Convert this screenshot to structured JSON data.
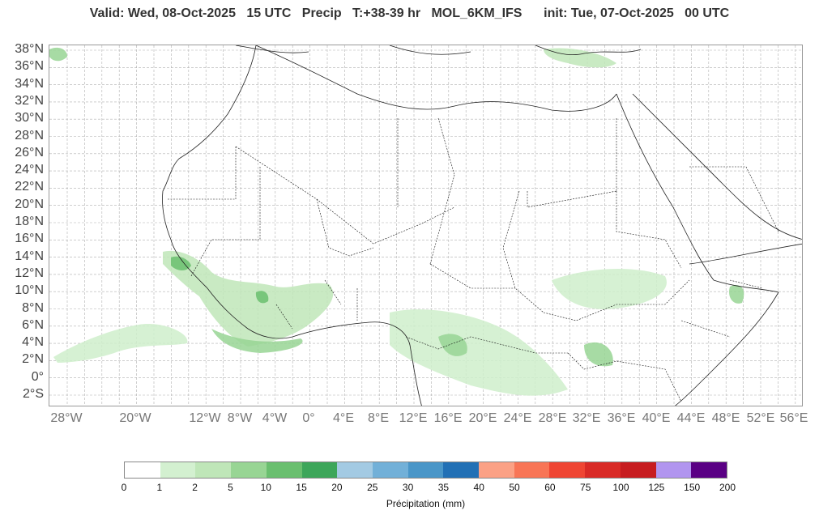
{
  "title": {
    "valid": "Valid: Wed, 08-Oct-2025",
    "hour": "15 UTC",
    "var": "Precip",
    "lead": "T:+38-39 hr",
    "model": "MOL_6KM_IFS",
    "init": "init: Tue, 07-Oct-2025",
    "init_hour": "00 UTC"
  },
  "map": {
    "lat_labels": [
      "38°N",
      "36°N",
      "34°N",
      "32°N",
      "30°N",
      "28°N",
      "26°N",
      "24°N",
      "22°N",
      "20°N",
      "18°N",
      "16°N",
      "14°N",
      "12°N",
      "10°N",
      "8°N",
      "6°N",
      "4°N",
      "2°N",
      "0°",
      "2°S"
    ],
    "lon_labels": [
      "28°W",
      "20°W",
      "12°W",
      "8°W",
      "4°W",
      "0°",
      "4°E",
      "8°E",
      "12°E",
      "16°E",
      "20°E",
      "24°E",
      "28°E",
      "32°E",
      "36°E",
      "40°E",
      "44°E",
      "48°E",
      "52°E",
      "56°E"
    ],
    "coastline_color": "#222222",
    "border_color": "#111111",
    "grid_color": "#b0b0b0"
  },
  "colorbar": {
    "label": "Précipitation (mm)",
    "ticks": [
      "0",
      "1",
      "2",
      "5",
      "10",
      "15",
      "20",
      "25",
      "30",
      "35",
      "40",
      "50",
      "60",
      "75",
      "100",
      "125",
      "150",
      "200"
    ],
    "colors": [
      "#ffffff",
      "#d3f0d0",
      "#bfe6b8",
      "#98d594",
      "#6abf6f",
      "#3da65a",
      "#a3cae3",
      "#72b0d8",
      "#4a96c8",
      "#2270b5",
      "#fba185",
      "#f87556",
      "#ef4533",
      "#d92a26",
      "#c71c20",
      "#b195ef",
      "#5a0084"
    ]
  }
}
